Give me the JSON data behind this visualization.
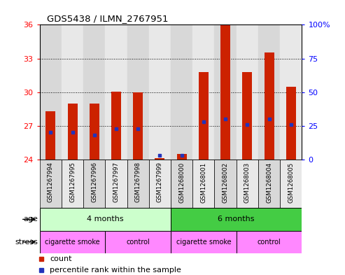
{
  "title": "GDS5438 / ILMN_2767951",
  "samples": [
    "GSM1267994",
    "GSM1267995",
    "GSM1267996",
    "GSM1267997",
    "GSM1267998",
    "GSM1267999",
    "GSM1268000",
    "GSM1268001",
    "GSM1268002",
    "GSM1268003",
    "GSM1268004",
    "GSM1268005"
  ],
  "counts": [
    28.3,
    29.0,
    29.0,
    30.05,
    30.0,
    24.1,
    24.5,
    31.8,
    36.0,
    31.8,
    33.5,
    30.5
  ],
  "percentiles": [
    20,
    20,
    18,
    23,
    23,
    3,
    3,
    28,
    30,
    26,
    30,
    26
  ],
  "ymin": 24,
  "ymax": 36,
  "yticks": [
    24,
    27,
    30,
    33,
    36
  ],
  "pct_yticks": [
    0,
    25,
    50,
    75,
    100
  ],
  "bar_color": "#cc2200",
  "blue_color": "#2233bb",
  "age_groups": [
    {
      "label": "4 months",
      "start": 0,
      "end": 6,
      "color": "#ccffcc"
    },
    {
      "label": "6 months",
      "start": 6,
      "end": 12,
      "color": "#44cc44"
    }
  ],
  "stress_groups": [
    {
      "label": "cigarette smoke",
      "start": 0,
      "end": 3,
      "color": "#ff88ff"
    },
    {
      "label": "control",
      "start": 3,
      "end": 6,
      "color": "#ff88ff"
    },
    {
      "label": "cigarette smoke",
      "start": 6,
      "end": 9,
      "color": "#ff88ff"
    },
    {
      "label": "control",
      "start": 9,
      "end": 12,
      "color": "#ff88ff"
    }
  ],
  "legend_count_label": "count",
  "legend_pct_label": "percentile rank within the sample",
  "col_bg_even": "#d8d8d8",
  "col_bg_odd": "#e8e8e8"
}
